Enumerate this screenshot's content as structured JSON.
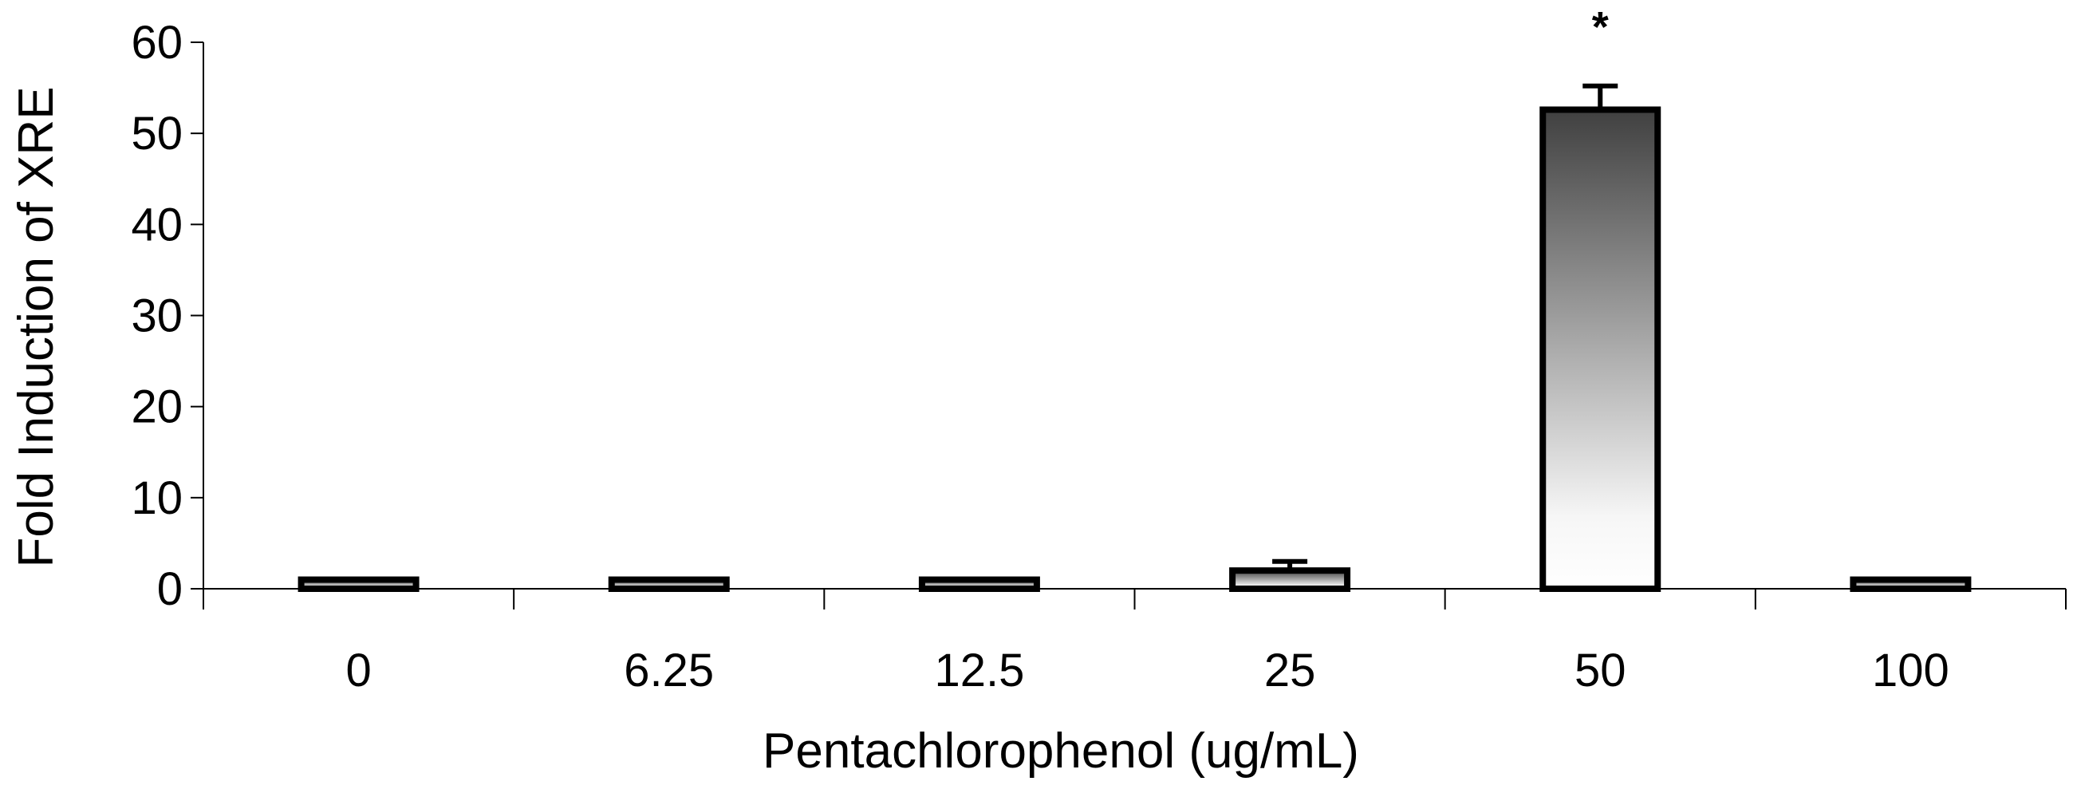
{
  "chart_data": {
    "type": "bar",
    "title": "",
    "xlabel": "Pentachlorophenol (ug/mL)",
    "ylabel": "Fold Induction of XRE",
    "ylim": [
      0,
      60
    ],
    "yticks": [
      0,
      10,
      20,
      30,
      40,
      50,
      60
    ],
    "categories": [
      "0",
      "6.25",
      "12.5",
      "25",
      "50",
      "100"
    ],
    "values": [
      1,
      1,
      1,
      2,
      52.6,
      1
    ],
    "error_bars": [
      0,
      0,
      0,
      1,
      2.6,
      0
    ],
    "annotations": [
      {
        "category": "50",
        "text": "*"
      }
    ],
    "grid": false,
    "legend": "none",
    "bar_fill": "vertical gradient dark-to-light",
    "colors": {
      "bar_top": "#404040",
      "bar_bottom": "#ffffff",
      "outline": "#000000"
    }
  }
}
